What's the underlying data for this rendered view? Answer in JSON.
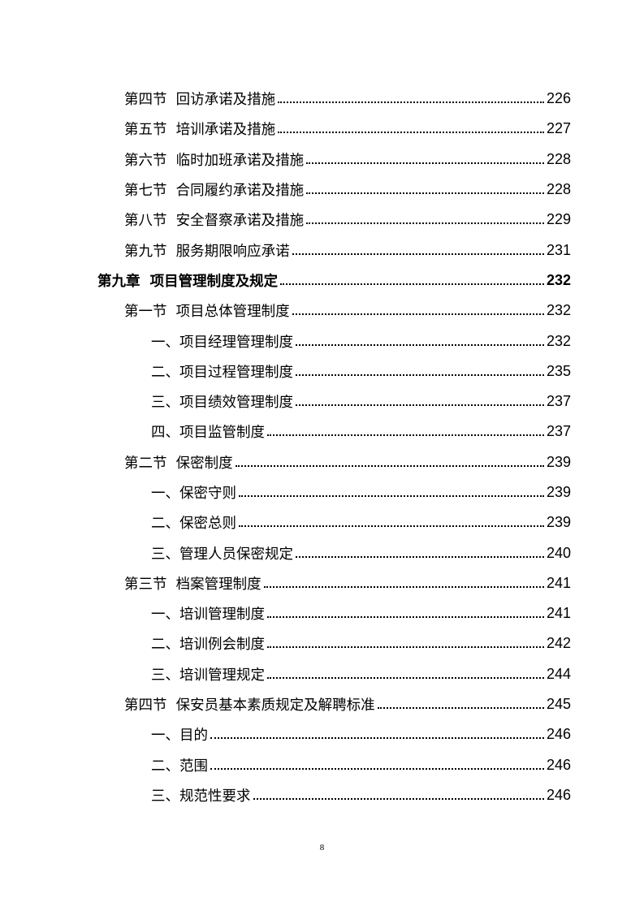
{
  "toc": [
    {
      "level": 1,
      "title": "第四节  回访承诺及措施",
      "page": "226"
    },
    {
      "level": 1,
      "title": "第五节  培训承诺及措施",
      "page": "227"
    },
    {
      "level": 1,
      "title": "第六节  临时加班承诺及措施",
      "page": "228"
    },
    {
      "level": 1,
      "title": "第七节  合同履约承诺及措施",
      "page": "228"
    },
    {
      "level": 1,
      "title": "第八节  安全督察承诺及措施",
      "page": "229"
    },
    {
      "level": 1,
      "title": "第九节  服务期限响应承诺",
      "page": "231"
    },
    {
      "level": 0,
      "title": "第九章  项目管理制度及规定",
      "page": "232"
    },
    {
      "level": 1,
      "title": "第一节  项目总体管理制度",
      "page": "232"
    },
    {
      "level": 2,
      "title": "一、项目经理管理制度",
      "page": "232"
    },
    {
      "level": 2,
      "title": "二、项目过程管理制度",
      "page": "235"
    },
    {
      "level": 2,
      "title": "三、项目绩效管理制度",
      "page": "237"
    },
    {
      "level": 2,
      "title": "四、项目监管制度",
      "page": "237"
    },
    {
      "level": 1,
      "title": "第二节  保密制度",
      "page": "239"
    },
    {
      "level": 2,
      "title": "一、保密守则",
      "page": "239"
    },
    {
      "level": 2,
      "title": "二、保密总则",
      "page": "239"
    },
    {
      "level": 2,
      "title": "三、管理人员保密规定",
      "page": "240"
    },
    {
      "level": 1,
      "title": "第三节  档案管理制度",
      "page": "241"
    },
    {
      "level": 2,
      "title": "一、培训管理制度",
      "page": "241"
    },
    {
      "level": 2,
      "title": "二、培训例会制度",
      "page": "242"
    },
    {
      "level": 2,
      "title": "三、培训管理规定",
      "page": "244"
    },
    {
      "level": 1,
      "title": "第四节  保安员基本素质规定及解聘标准",
      "page": "245"
    },
    {
      "level": 2,
      "title": "一、目的",
      "page": "246"
    },
    {
      "level": 2,
      "title": "二、范围",
      "page": "246"
    },
    {
      "level": 2,
      "title": "三、规范性要求",
      "page": "246"
    }
  ],
  "footer": {
    "page_number": "8"
  }
}
